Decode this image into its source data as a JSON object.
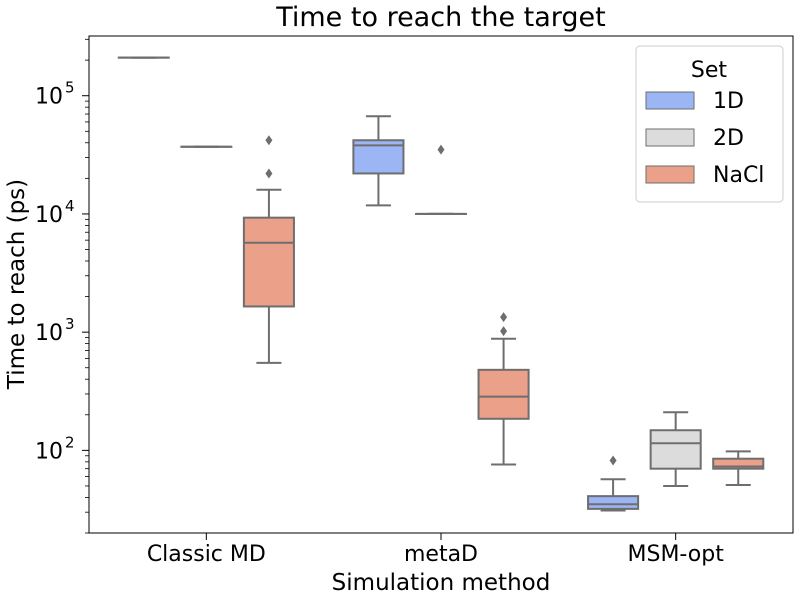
{
  "chart_data": {
    "type": "box",
    "title": "Time to reach the target",
    "xlabel": "Simulation method",
    "ylabel": "Time to reach (ps)",
    "yscale": "log",
    "ylim": [
      20,
      320000
    ],
    "categories": [
      "Classic MD",
      "metaD",
      "MSM-opt"
    ],
    "yticks": [
      {
        "label_base": "10",
        "label_exp": "2"
      },
      {
        "label_base": "10",
        "label_exp": "3"
      },
      {
        "label_base": "10",
        "label_exp": "4"
      },
      {
        "label_base": "10",
        "label_exp": "5"
      }
    ],
    "legend": {
      "title": "Set",
      "position": "top-right"
    },
    "series": [
      {
        "name": "1D",
        "color": "#9bb5f5",
        "boxes": [
          {
            "category": "Classic MD",
            "whislo": 210000,
            "q1": 210000,
            "med": 210000,
            "q3": 210000,
            "whishi": 210000,
            "fliers": []
          },
          {
            "category": "metaD",
            "whislo": 11800,
            "q1": 22000,
            "med": 38000,
            "q3": 42000,
            "whishi": 67000,
            "fliers": []
          },
          {
            "category": "MSM-opt",
            "whislo": 31,
            "q1": 32,
            "med": 35,
            "q3": 41,
            "whishi": 57,
            "fliers": [
              82
            ]
          }
        ]
      },
      {
        "name": "2D",
        "color": "#dcdcdc",
        "boxes": [
          {
            "category": "Classic MD",
            "whislo": 37000,
            "q1": 37000,
            "med": 37000,
            "q3": 37000,
            "whishi": 37000,
            "fliers": []
          },
          {
            "category": "metaD",
            "whislo": 10000,
            "q1": 10000,
            "med": 10000,
            "q3": 10000,
            "whishi": 10000,
            "fliers": [
              35000
            ]
          },
          {
            "category": "MSM-opt",
            "whislo": 50,
            "q1": 70,
            "med": 115,
            "q3": 148,
            "whishi": 210,
            "fliers": []
          }
        ]
      },
      {
        "name": "NaCl",
        "color": "#eba08a",
        "boxes": [
          {
            "category": "Classic MD",
            "whislo": 550,
            "q1": 1650,
            "med": 5700,
            "q3": 9300,
            "whishi": 16000,
            "fliers": [
              22000,
              42000
            ]
          },
          {
            "category": "metaD",
            "whislo": 76,
            "q1": 185,
            "med": 285,
            "q3": 480,
            "whishi": 880,
            "fliers": [
              1020,
              1340
            ]
          },
          {
            "category": "MSM-opt",
            "whislo": 51,
            "q1": 70,
            "med": 73,
            "q3": 85,
            "whishi": 98,
            "fliers": []
          }
        ]
      }
    ]
  }
}
